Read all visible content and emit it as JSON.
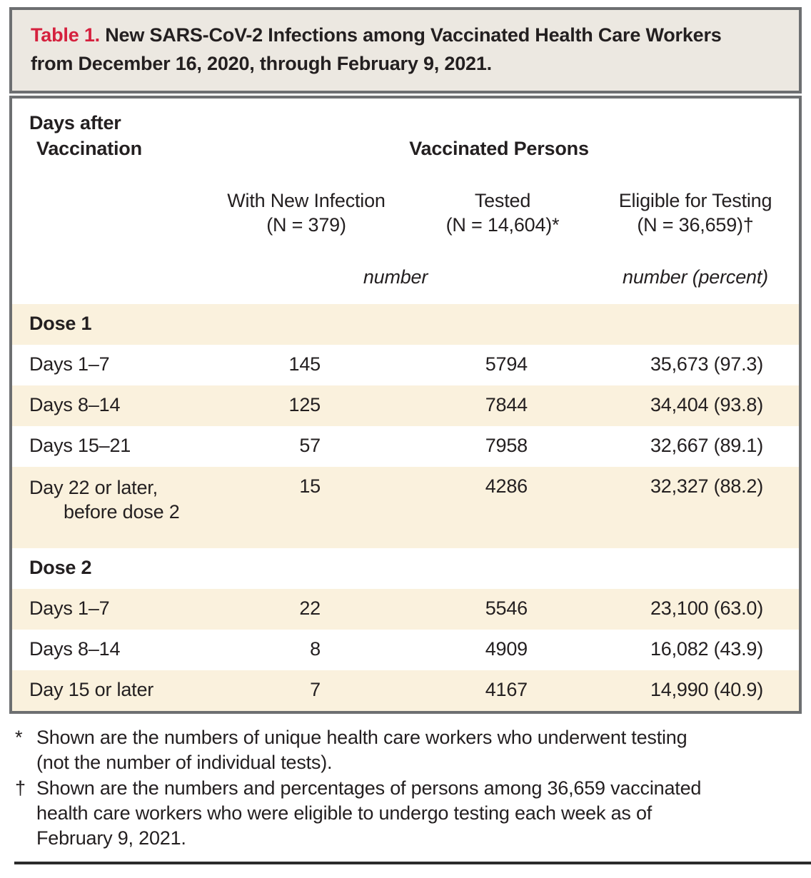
{
  "title": {
    "label": "Table 1.",
    "line1_rest": "New SARS-CoV-2 Infections among Vaccinated Health Care Workers",
    "line2": "from December 16, 2020, through February 9, 2021."
  },
  "header": {
    "stub_line1": "Days after",
    "stub_line2": "Vaccination",
    "group_label": "Vaccinated Persons",
    "columns": [
      {
        "label": "With New Infection",
        "n": "(N = 379)"
      },
      {
        "label": "Tested",
        "n": "(N = 14,604)*"
      },
      {
        "label": "Eligible for Testing",
        "n": "(N = 36,659)†"
      }
    ],
    "units_counts": "number",
    "units_eligible": "number (percent)"
  },
  "rows": [
    {
      "type": "section",
      "label": "Dose 1"
    },
    {
      "type": "data",
      "label": "Days 1–7",
      "infection": "145",
      "tested": "5794",
      "eligible": "35,673 (97.3)"
    },
    {
      "type": "data",
      "label": "Days 8–14",
      "infection": "125",
      "tested": "7844",
      "eligible": "34,404 (93.8)"
    },
    {
      "type": "data",
      "label": "Days 15–21",
      "infection": "57",
      "tested": "7958",
      "eligible": "32,667 (89.1)"
    },
    {
      "type": "data",
      "label": "Day 22 or later,",
      "label2": "before dose 2",
      "infection": "15",
      "tested": "4286",
      "eligible": "32,327 (88.2)"
    },
    {
      "type": "section",
      "label": "Dose 2"
    },
    {
      "type": "data",
      "label": "Days 1–7",
      "infection": "22",
      "tested": "5546",
      "eligible": "23,100 (63.0)"
    },
    {
      "type": "data",
      "label": "Days 8–14",
      "infection": "8",
      "tested": "4909",
      "eligible": "16,082 (43.9)"
    },
    {
      "type": "data",
      "label": "Day 15 or later",
      "infection": "7",
      "tested": "4167",
      "eligible": "14,990 (40.9)"
    }
  ],
  "footnotes": [
    {
      "marker": "*",
      "lines": [
        "Shown are the numbers of unique health care workers who underwent testing",
        "(not the number of individual tests)."
      ]
    },
    {
      "marker": "†",
      "lines": [
        "Shown are the numbers and percentages of persons among 36,659 vaccinated",
        "health care workers who were eligible to undergo testing each week as of",
        "February 9, 2021."
      ]
    }
  ],
  "colors": {
    "accent_red": "#d5213e",
    "stripe": "#faf1dd",
    "title_bg": "#ece8e1",
    "border_gray": "#6d6f71",
    "text": "#231f20"
  }
}
